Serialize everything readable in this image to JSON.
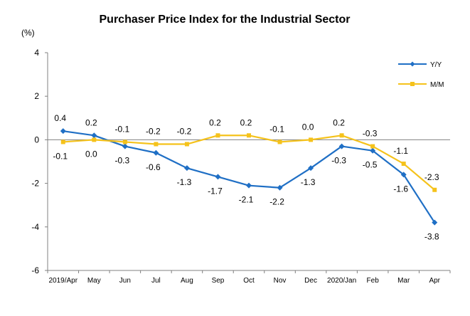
{
  "chart_data": {
    "type": "line",
    "title": "Purchaser Price Index for the Industrial  Sector",
    "ylabel": "(%)",
    "xlabel": "",
    "ylim": [
      -6,
      4
    ],
    "yticks": [
      4,
      2,
      0,
      -2,
      -4,
      -6
    ],
    "categories": [
      "2019/Apr",
      "May",
      "Jun",
      "Jul",
      "Aug",
      "Sep",
      "Oct",
      "Nov",
      "Dec",
      "2020/Jan",
      "Feb",
      "Mar",
      "Apr"
    ],
    "series": [
      {
        "name": "Y/Y",
        "color": "#1f6fc5",
        "marker": "diamond",
        "values": [
          0.4,
          0.2,
          -0.3,
          -0.6,
          -1.3,
          -1.7,
          -2.1,
          -2.2,
          -1.3,
          -0.3,
          -0.5,
          -1.6,
          -3.8
        ],
        "labels": [
          "0.4",
          "0.2",
          "-0.3",
          "-0.6",
          "-1.3",
          "-1.7",
          "-2.1",
          "-2.2",
          "-1.3",
          "-0.3",
          "-0.5",
          "-1.6",
          "-3.8"
        ]
      },
      {
        "name": "M/M",
        "color": "#f5c21b",
        "marker": "square",
        "values": [
          -0.1,
          0.0,
          -0.1,
          -0.2,
          -0.2,
          0.2,
          0.2,
          -0.1,
          0.0,
          0.2,
          -0.3,
          -1.1,
          -2.3
        ],
        "labels": [
          "-0.1",
          "0.0",
          "-0.1",
          "-0.2",
          "-0.2",
          "0.2",
          "0.2",
          "-0.1",
          "0.0",
          "0.2",
          "-0.3",
          "-1.1",
          "-2.3"
        ]
      }
    ],
    "legend": "top-right",
    "grid": false
  }
}
